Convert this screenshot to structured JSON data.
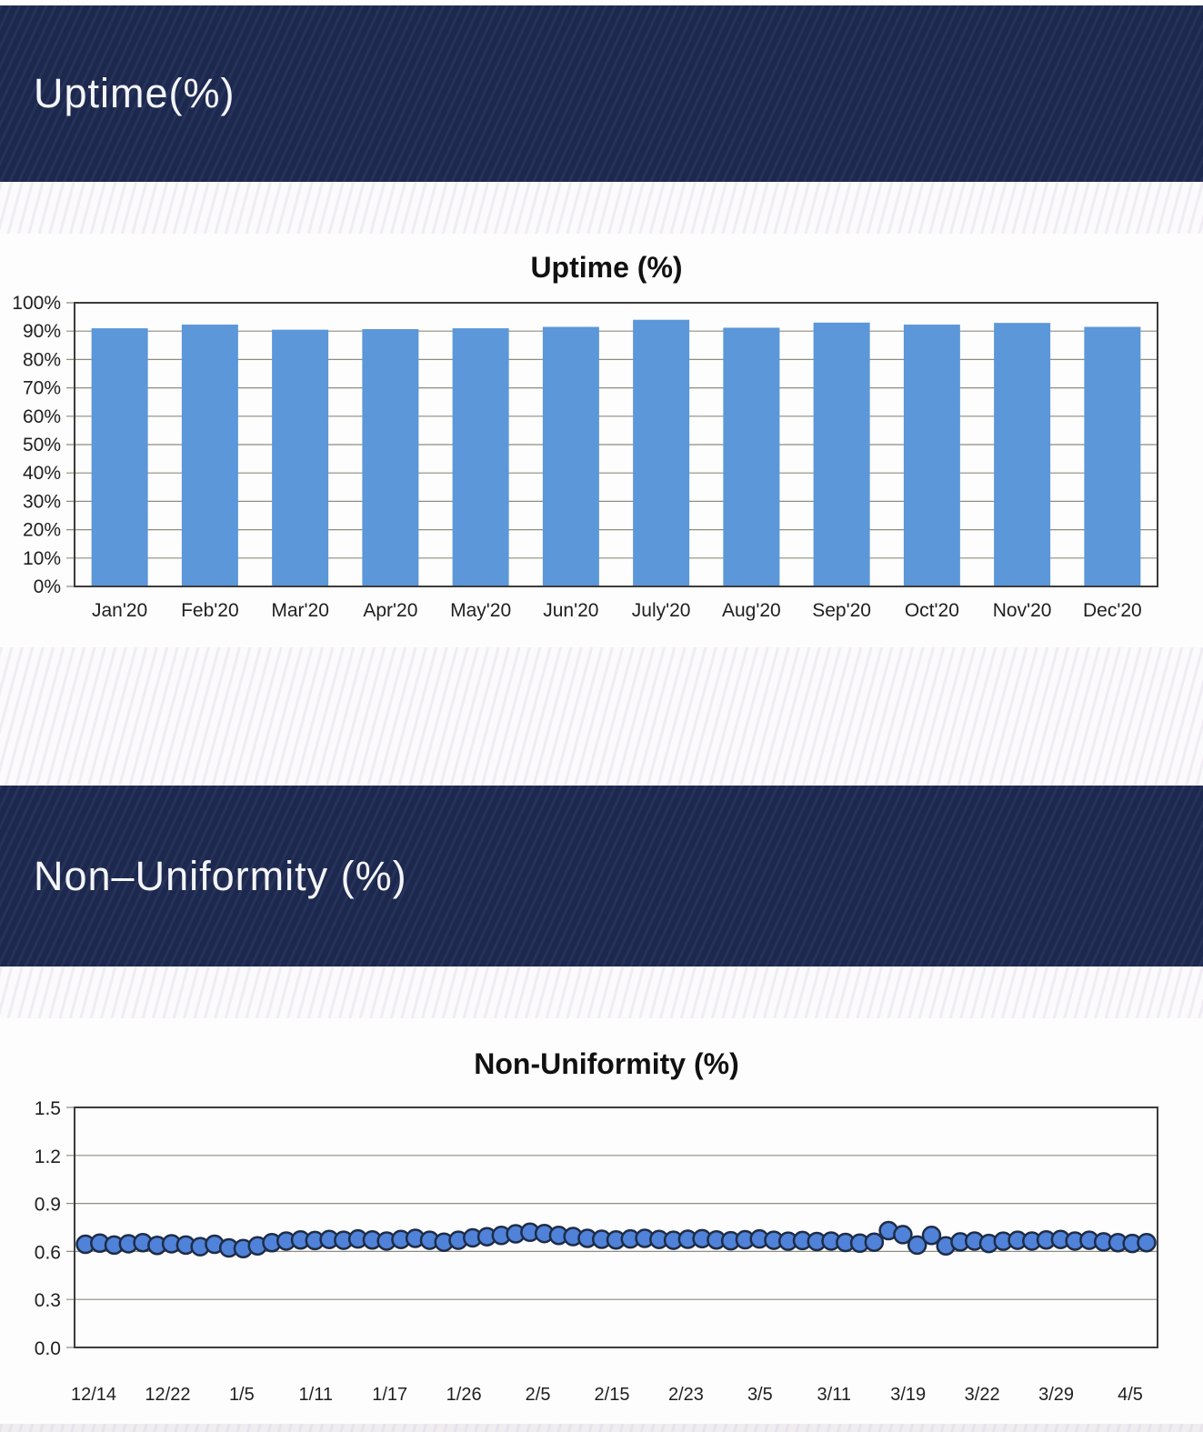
{
  "sections": [
    {
      "id": "uptime",
      "band_title": "Uptime(%)"
    },
    {
      "id": "non_uniformity",
      "band_title": "Non–Uniformity (%)"
    }
  ],
  "colors": {
    "band_navy": "#1e2a52",
    "band_edge_blue": "#3a4f97",
    "bar_blue": "#5b97d9",
    "point_fill": "#4f82d8",
    "point_stroke": "#1e2c47",
    "gridline": "#8f8d80",
    "frame": "#3c3c3c",
    "text": "#1f1f1f"
  },
  "chart_data": [
    {
      "type": "bar",
      "title": "Uptime (%)",
      "xlabel": "",
      "ylabel": "",
      "ylim": [
        0,
        100
      ],
      "ytick_step": 10,
      "ytick_suffix": "%",
      "grid": true,
      "legend": "none",
      "categories": [
        "Jan'20",
        "Feb'20",
        "Mar'20",
        "Apr'20",
        "May'20",
        "Jun'20",
        "July'20",
        "Aug'20",
        "Sep'20",
        "Oct'20",
        "Nov'20",
        "Dec'20"
      ],
      "values": [
        91.0,
        92.3,
        90.5,
        90.7,
        91.0,
        91.5,
        94.0,
        91.2,
        93.0,
        92.3,
        92.9,
        91.5
      ]
    },
    {
      "type": "scatter",
      "title": "Non-Uniformity (%)",
      "xlabel": "",
      "ylabel": "",
      "ylim": [
        0,
        1.5
      ],
      "ytick_step": 0.3,
      "grid": true,
      "legend": "none",
      "x_tick_labels": [
        "12/14",
        "12/22",
        "1/5",
        "1/11",
        "1/17",
        "1/26",
        "2/5",
        "2/15",
        "2/23",
        "3/5",
        "3/11",
        "3/19",
        "3/22",
        "3/29",
        "4/5"
      ],
      "values": [
        0.645,
        0.652,
        0.64,
        0.648,
        0.655,
        0.638,
        0.648,
        0.64,
        0.63,
        0.645,
        0.622,
        0.618,
        0.635,
        0.655,
        0.665,
        0.672,
        0.668,
        0.675,
        0.67,
        0.678,
        0.672,
        0.665,
        0.675,
        0.682,
        0.67,
        0.658,
        0.67,
        0.685,
        0.692,
        0.7,
        0.71,
        0.72,
        0.712,
        0.7,
        0.693,
        0.682,
        0.676,
        0.672,
        0.678,
        0.682,
        0.675,
        0.67,
        0.676,
        0.68,
        0.672,
        0.667,
        0.673,
        0.678,
        0.67,
        0.664,
        0.668,
        0.662,
        0.665,
        0.656,
        0.652,
        0.658,
        0.73,
        0.705,
        0.64,
        0.7,
        0.635,
        0.66,
        0.665,
        0.65,
        0.664,
        0.67,
        0.665,
        0.672,
        0.675,
        0.665,
        0.67,
        0.66,
        0.655,
        0.65,
        0.655
      ]
    }
  ]
}
